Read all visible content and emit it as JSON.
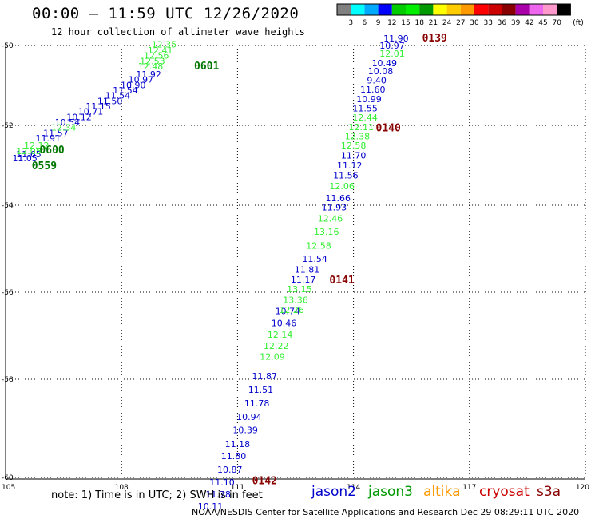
{
  "header": {
    "title": "00:00 – 11:59 UTC 12/26/2020",
    "subtitle": "12 hour collection of altimeter wave heights"
  },
  "colorbar": {
    "unit_label": "(ft)",
    "colors": [
      "#808080",
      "#00ffff",
      "#00aaff",
      "#0000ff",
      "#00cc00",
      "#00ee00",
      "#009900",
      "#ffff00",
      "#ffcc00",
      "#ff9900",
      "#ff0000",
      "#cc0000",
      "#880000",
      "#aa00aa",
      "#ee66ee",
      "#ff99cc",
      "#000000"
    ],
    "tick_labels": [
      "3",
      "6",
      "9",
      "12",
      "15",
      "18",
      "21",
      "24",
      "27",
      "30",
      "33",
      "36",
      "39",
      "42",
      "45",
      "70"
    ]
  },
  "chart_data": {
    "type": "scatter",
    "xlim": [
      105,
      120
    ],
    "ylim": [
      -60,
      -50
    ],
    "xticks": [
      "105",
      "108",
      "111",
      "114",
      "117",
      "120"
    ],
    "yticks": [
      "-50",
      "-52",
      "-54",
      "-56",
      "-58",
      "-60"
    ],
    "grid": true,
    "series": [
      {
        "name": "jason2",
        "color": "#0000cc",
        "points": [
          {
            "x": 108.7,
            "y": -50.8,
            "v": "11.92"
          },
          {
            "x": 108.5,
            "y": -50.93,
            "v": "10.97"
          },
          {
            "x": 108.3,
            "y": -51.07,
            "v": "10.90"
          },
          {
            "x": 108.1,
            "y": -51.2,
            "v": "11.54"
          },
          {
            "x": 107.9,
            "y": -51.33,
            "v": "11.54"
          },
          {
            "x": 107.7,
            "y": -51.47,
            "v": "11.50"
          },
          {
            "x": 107.4,
            "y": -51.6,
            "v": "11.15"
          },
          {
            "x": 107.2,
            "y": -51.73,
            "v": "10.71"
          },
          {
            "x": 106.9,
            "y": -51.87,
            "v": "10.12"
          },
          {
            "x": 106.6,
            "y": -52.0,
            "v": "10.54"
          },
          {
            "x": 106.3,
            "y": -52.27,
            "v": "11.57"
          },
          {
            "x": 106.1,
            "y": -52.4,
            "v": "11.91"
          },
          {
            "x": 105.6,
            "y": -52.8,
            "v": "11.65"
          },
          {
            "x": 105.5,
            "y": -52.9,
            "v": "11.05"
          },
          {
            "x": 115.1,
            "y": -49.9,
            "v": "11.90"
          },
          {
            "x": 115.0,
            "y": -50.08,
            "v": "10.97"
          },
          {
            "x": 114.8,
            "y": -50.52,
            "v": "10.49"
          },
          {
            "x": 114.7,
            "y": -50.72,
            "v": "10.08"
          },
          {
            "x": 114.6,
            "y": -50.95,
            "v": "9.40"
          },
          {
            "x": 114.5,
            "y": -51.18,
            "v": "11.60"
          },
          {
            "x": 114.4,
            "y": -51.42,
            "v": "10.99"
          },
          {
            "x": 114.3,
            "y": -51.65,
            "v": "11.55"
          },
          {
            "x": 114.0,
            "y": -52.83,
            "v": "11.70"
          },
          {
            "x": 113.9,
            "y": -53.08,
            "v": "11.12"
          },
          {
            "x": 113.8,
            "y": -53.33,
            "v": "11.56"
          },
          {
            "x": 113.6,
            "y": -53.9,
            "v": "11.66"
          },
          {
            "x": 113.5,
            "y": -54.12,
            "v": "11.93"
          },
          {
            "x": 113.0,
            "y": -55.3,
            "v": "11.54"
          },
          {
            "x": 112.8,
            "y": -55.55,
            "v": "11.81"
          },
          {
            "x": 112.7,
            "y": -55.78,
            "v": "11.17"
          },
          {
            "x": 112.3,
            "y": -56.5,
            "v": "10.74"
          },
          {
            "x": 112.2,
            "y": -56.78,
            "v": "10.46"
          },
          {
            "x": 111.7,
            "y": -58.0,
            "v": "11.87"
          },
          {
            "x": 111.6,
            "y": -58.28,
            "v": "11.51"
          },
          {
            "x": 111.5,
            "y": -58.55,
            "v": "11.78"
          },
          {
            "x": 111.3,
            "y": -58.83,
            "v": "10.94"
          },
          {
            "x": 111.2,
            "y": -59.1,
            "v": "10.39"
          },
          {
            "x": 111.0,
            "y": -59.38,
            "v": "11.18"
          },
          {
            "x": 110.9,
            "y": -59.63,
            "v": "11.80"
          },
          {
            "x": 110.8,
            "y": -59.9,
            "v": "10.87"
          },
          {
            "x": 110.6,
            "y": -60.18,
            "v": "11.10"
          },
          {
            "x": 110.5,
            "y": -60.45,
            "v": "11.78"
          },
          {
            "x": 110.3,
            "y": -60.73,
            "v": "10.11"
          }
        ]
      },
      {
        "name": "jason3",
        "color": "#33ee33",
        "points": [
          {
            "x": 109.1,
            "y": -50.05,
            "v": "12.35"
          },
          {
            "x": 109.0,
            "y": -50.2,
            "v": "12.41"
          },
          {
            "x": 108.9,
            "y": -50.33,
            "v": "12.56"
          },
          {
            "x": 108.8,
            "y": -50.47,
            "v": "12.53"
          },
          {
            "x": 108.75,
            "y": -50.6,
            "v": "12.48"
          },
          {
            "x": 106.5,
            "y": -52.13,
            "v": "12.34"
          },
          {
            "x": 105.8,
            "y": -52.58,
            "v": "12.12"
          },
          {
            "x": 105.6,
            "y": -52.72,
            "v": "12.05"
          },
          {
            "x": 115.0,
            "y": -50.28,
            "v": "12.01"
          },
          {
            "x": 114.3,
            "y": -51.88,
            "v": "12.44"
          },
          {
            "x": 114.2,
            "y": -52.12,
            "v": "12.11"
          },
          {
            "x": 114.1,
            "y": -52.35,
            "v": "12.38"
          },
          {
            "x": 114.0,
            "y": -52.58,
            "v": "12.58"
          },
          {
            "x": 113.7,
            "y": -53.6,
            "v": "12.06"
          },
          {
            "x": 113.4,
            "y": -54.38,
            "v": "12.46"
          },
          {
            "x": 113.3,
            "y": -54.68,
            "v": "13.16"
          },
          {
            "x": 113.1,
            "y": -55.0,
            "v": "12.58"
          },
          {
            "x": 112.6,
            "y": -56.0,
            "v": "13.15"
          },
          {
            "x": 112.5,
            "y": -56.25,
            "v": "13.36"
          },
          {
            "x": 112.4,
            "y": -56.48,
            "v": "12.26"
          },
          {
            "x": 112.1,
            "y": -57.05,
            "v": "12.14"
          },
          {
            "x": 112.0,
            "y": -57.3,
            "v": "12.22"
          },
          {
            "x": 111.9,
            "y": -57.55,
            "v": "12.09"
          }
        ]
      }
    ],
    "time_labels": [
      {
        "x": 110.2,
        "y": -50.6,
        "text": "0601",
        "color": "#007700"
      },
      {
        "x": 106.2,
        "y": -52.7,
        "text": "0600",
        "color": "#007700"
      },
      {
        "x": 106.0,
        "y": -53.1,
        "text": "0559",
        "color": "#007700"
      },
      {
        "x": 116.1,
        "y": -49.9,
        "text": "0139",
        "color": "#880000"
      },
      {
        "x": 114.9,
        "y": -52.15,
        "text": "0140",
        "color": "#880000"
      },
      {
        "x": 113.7,
        "y": -55.8,
        "text": "0141",
        "color": "#880000"
      },
      {
        "x": 111.7,
        "y": -60.15,
        "text": "0142",
        "color": "#880000"
      }
    ]
  },
  "note": "note: 1) Time is in UTC; 2) SWH is in feet",
  "legend": [
    {
      "label": "jason2",
      "color": "#0000cc"
    },
    {
      "label": "jason3",
      "color": "#009900"
    },
    {
      "label": "altika",
      "color": "#ff9900"
    },
    {
      "label": "cryosat",
      "color": "#cc0000"
    },
    {
      "label": "s3a",
      "color": "#880000"
    }
  ],
  "footer": "NOAA/NESDIS Center for Satellite Applications and Research    Dec 29 08:29:11 UTC 2020"
}
